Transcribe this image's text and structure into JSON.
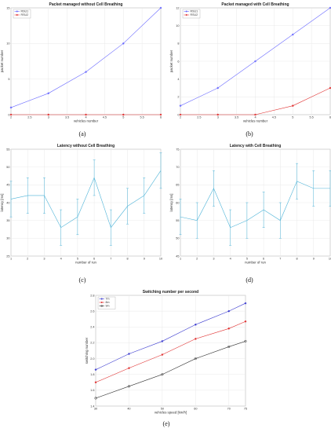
{
  "charts": [
    {
      "id": "a",
      "caption": "(a)",
      "chart_data": {
        "type": "line",
        "title": "Packet managed without Cell Breathing",
        "xlabel": "vehicles number",
        "ylabel": "packet number",
        "xlim": [
          2,
          6
        ],
        "ylim": [
          0,
          15
        ],
        "xticks": [
          2,
          2.5,
          3,
          3.5,
          4,
          4.5,
          5,
          5.5,
          6
        ],
        "yticks": [
          0,
          5,
          10,
          15
        ],
        "grid": true,
        "legend": "top-left",
        "series": [
          {
            "name": "RSU1",
            "color": "#6a6aff",
            "marker": "*",
            "x": [
              2,
              3,
              4,
              5,
              6
            ],
            "y": [
              1,
              3,
              6,
              10,
              15
            ]
          },
          {
            "name": "RSU2",
            "color": "#e03030",
            "marker": "*",
            "x": [
              2,
              3,
              4,
              5,
              6
            ],
            "y": [
              0,
              0,
              0,
              0,
              0
            ]
          }
        ]
      }
    },
    {
      "id": "b",
      "caption": "(b)",
      "chart_data": {
        "type": "line",
        "title": "Packet managed with Cell Breathing",
        "xlabel": "vehicles number",
        "ylabel": "packet number",
        "xlim": [
          2,
          6
        ],
        "ylim": [
          0,
          12
        ],
        "xticks": [
          2,
          2.5,
          3,
          3.5,
          4,
          4.5,
          5,
          5.5,
          6
        ],
        "yticks": [
          0,
          2,
          4,
          6,
          8,
          10,
          12
        ],
        "grid": true,
        "legend": "top-left",
        "series": [
          {
            "name": "RSU1",
            "color": "#6a6aff",
            "marker": "*",
            "x": [
              2,
              3,
              4,
              5,
              6
            ],
            "y": [
              1,
              3,
              6,
              9,
              12
            ]
          },
          {
            "name": "RSU2",
            "color": "#e03030",
            "marker": "*",
            "x": [
              2,
              3,
              4,
              5,
              6
            ],
            "y": [
              0,
              0,
              0,
              1,
              3
            ]
          }
        ]
      }
    },
    {
      "id": "c",
      "caption": "(c)",
      "chart_data": {
        "type": "line",
        "title": "Latency without Cell Breathing",
        "xlabel": "number of run",
        "ylabel": "latency [ms]",
        "xlim": [
          1,
          10
        ],
        "ylim": [
          25,
          55
        ],
        "xticks": [
          1,
          2,
          3,
          4,
          5,
          6,
          7,
          8,
          9,
          10
        ],
        "yticks": [
          25,
          30,
          35,
          40,
          45,
          50,
          55
        ],
        "grid": true,
        "error_bars": true,
        "series": [
          {
            "color": "#4fb4d8",
            "x": [
              1,
              2,
              3,
              4,
              5,
              6,
              7,
              8,
              9,
              10
            ],
            "y": [
              41,
              42,
              42,
              33,
              36,
              47,
              33,
              39,
              42,
              49
            ],
            "err": [
              5,
              5,
              5,
              5,
              5,
              5,
              5,
              5,
              5,
              5
            ]
          }
        ]
      }
    },
    {
      "id": "d",
      "caption": "(d)",
      "chart_data": {
        "type": "line",
        "title": "Latency with Cell Breathing",
        "xlabel": "number of run",
        "ylabel": "latency [ms]",
        "xlim": [
          1,
          10
        ],
        "ylim": [
          45,
          75
        ],
        "xticks": [
          1,
          2,
          3,
          4,
          5,
          6,
          7,
          8,
          9,
          10
        ],
        "yticks": [
          45,
          50,
          55,
          60,
          65,
          70,
          75
        ],
        "grid": true,
        "error_bars": true,
        "series": [
          {
            "color": "#4fb4d8",
            "x": [
              1,
              2,
              3,
              4,
              5,
              6,
              7,
              8,
              9,
              10
            ],
            "y": [
              56,
              55,
              64,
              53,
              55,
              58,
              55,
              66,
              64,
              64
            ],
            "err": [
              5,
              5,
              5,
              5,
              5,
              5,
              5,
              5,
              5,
              5
            ]
          }
        ]
      }
    },
    {
      "id": "e",
      "caption": "(e)",
      "chart_data": {
        "type": "line",
        "title": "Switching number per second",
        "xlabel": "vehicles speed [km/h]",
        "ylabel": "switching number",
        "xlim": [
          30,
          75
        ],
        "ylim": [
          1.4,
          2.8
        ],
        "xticks": [
          30,
          40,
          50,
          60,
          70,
          75
        ],
        "yticks": [
          1.4,
          1.6,
          1.8,
          2.0,
          2.2,
          2.4,
          2.6,
          2.8
        ],
        "grid": true,
        "legend": "top-left",
        "series": [
          {
            "name": "7m",
            "color": "#3a3acf",
            "marker": "*",
            "x": [
              30,
              40,
              50,
              60,
              70,
              75
            ],
            "y": [
              1.86,
              2.06,
              2.22,
              2.43,
              2.6,
              2.7
            ]
          },
          {
            "name": "8m",
            "color": "#e03030",
            "marker": "*",
            "x": [
              30,
              40,
              50,
              60,
              70,
              75
            ],
            "y": [
              1.7,
              1.88,
              2.05,
              2.25,
              2.38,
              2.47
            ]
          },
          {
            "name": "9m",
            "color": "#333333",
            "marker": "o",
            "x": [
              30,
              40,
              50,
              60,
              70,
              75
            ],
            "y": [
              1.5,
              1.65,
              1.8,
              2.0,
              2.15,
              2.22
            ]
          }
        ]
      }
    }
  ]
}
